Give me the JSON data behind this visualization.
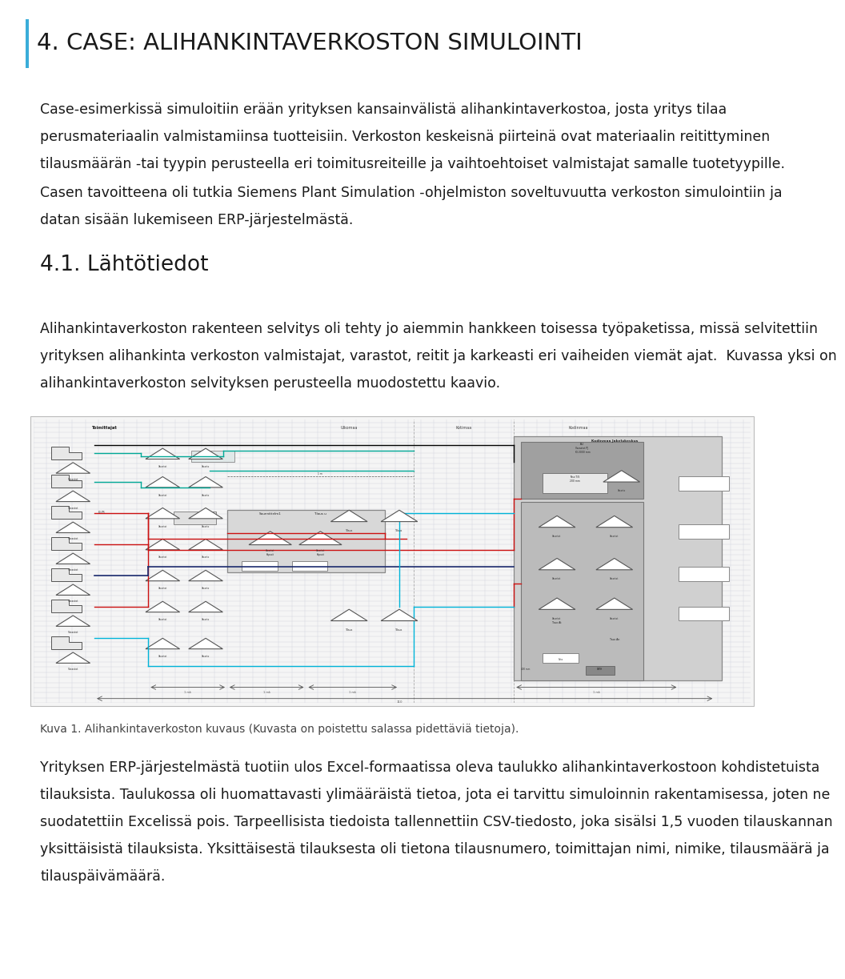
{
  "title": "4. CASE: ALIHANKINTAVERKOSTON SIMULOINTI",
  "title_bar_color": "#3aadd9",
  "background_color": "#ffffff",
  "body_text_color": "#1a1a1a",
  "body_font_size": 12.5,
  "section_title": "4.1. Lähtötiedot",
  "section_title_color": "#1a1a1a",
  "caption": "Kuva 1. Alihankintaverkoston kuvaus (Kuvasta on poistettu salassa pidettäviä tietoja).",
  "p1_lines": [
    "Case-esimerkissä simuloitiin erään yrityksen kansainvälistä alihankintaverkostoa, josta yritys tilaa",
    "perusmateriaalin valmistamiinsa tuotteisiin. Verkoston keskeisnä piirteinä ovat materiaalin reitittyminen",
    "tilausmäärän -tai tyypin perusteella eri toimitusreiteille ja vaihtoehtoiset valmistajat samalle tuotetyypille."
  ],
  "p2_lines": [
    "Casen tavoitteena oli tutkia Siemens Plant Simulation -ohjelmiston soveltuvuutta verkoston simulointiin ja",
    "datan sisään lukemiseen ERP-järjestelmästä."
  ],
  "p3_lines": [
    "Alihankintaverkoston rakenteen selvitys oli tehty jo aiemmin hankkeen toisessa työpaketissa, missä selvitettiin",
    "yrityksen alihankinta verkoston valmistajat, varastot, reitit ja karkeasti eri vaiheiden viemät ajat.  Kuvassa yksi on",
    "alihankintaverkoston selvityksen perusteella muodostettu kaavio."
  ],
  "p4_lines": [
    "Yrityksen ERP-järjestelmästä tuotiin ulos Excel-formaatissa oleva taulukko alihankintaverkostoon kohdistetuista",
    "tilauksista. Taulukossa oli huomattavasti ylimääräistä tietoa, jota ei tarvittu simuloinnin rakentamisessa, joten ne",
    "suodatettiin Excelissä pois. Tarpeellisista tiedoista tallennettiin CSV-tiedosto, joka sisälsi 1,5 vuoden tilauskannan",
    "yksittäisistä tilauksista. Yksittäisestä tilauksesta oli tietona tilausnumero, toimittajan nimi, nimike, tilausmäärä ja",
    "tilauspäivämäärä."
  ],
  "lm": 0.042,
  "title_fs": 21,
  "section_fs": 19
}
